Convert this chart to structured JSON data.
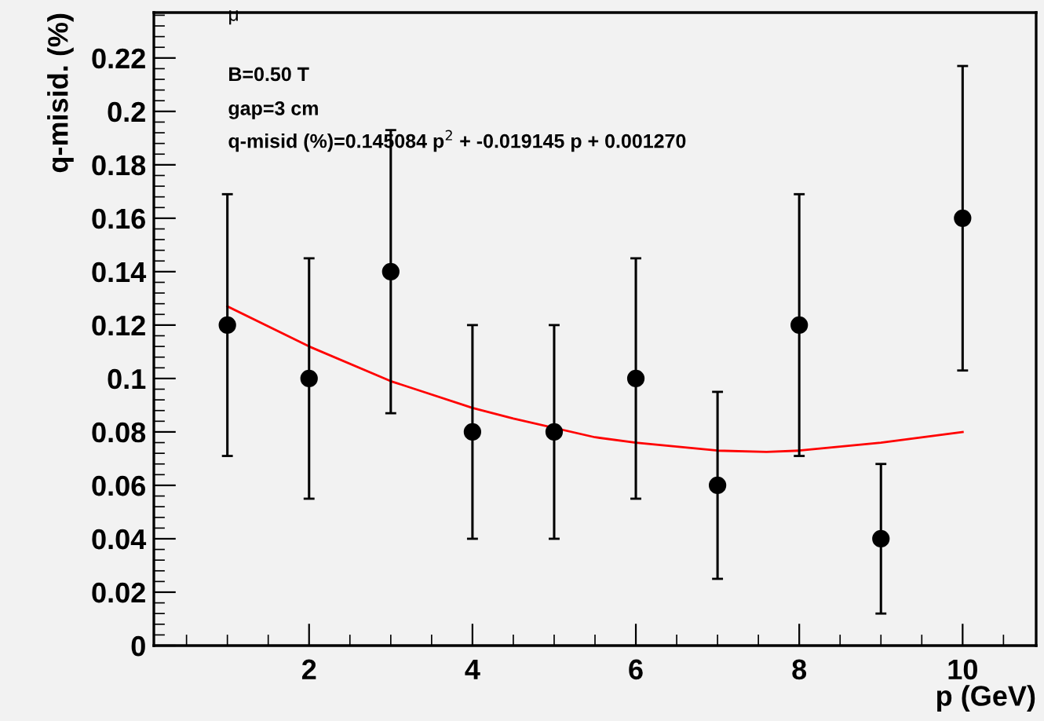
{
  "chart_data": {
    "type": "scatter",
    "xlabel": "p (GeV)",
    "ylabel": "q-misid. (%)",
    "x": [
      1,
      2,
      3,
      4,
      5,
      6,
      7,
      8,
      9,
      10
    ],
    "series": [
      {
        "color": "#000000",
        "marker": "circle",
        "values": [
          0.12,
          0.1,
          0.14,
          0.08,
          0.08,
          0.1,
          0.06,
          0.12,
          0.04,
          0.16
        ],
        "errors": [
          0.049,
          0.045,
          0.053,
          0.04,
          0.04,
          0.045,
          0.035,
          0.049,
          0.028,
          0.057
        ]
      },
      {
        "type": "line",
        "color": "#ff0000",
        "x": [
          1,
          2,
          3,
          4,
          4.5,
          5.5,
          6,
          7,
          7.6,
          8,
          9,
          10
        ],
        "values": [
          0.127,
          0.112,
          0.099,
          0.089,
          0.085,
          0.078,
          0.076,
          0.073,
          0.0725,
          0.073,
          0.076,
          0.08
        ]
      }
    ],
    "xlim": [
      0.1,
      10.9
    ],
    "ylim": [
      0,
      0.237
    ],
    "xticks": [
      2,
      4,
      6,
      8,
      10
    ],
    "yticks": [
      0,
      0.02,
      0.04,
      0.06,
      0.08,
      {
        "value": 0.1,
        "label": "0.1"
      },
      0.12,
      0.14,
      0.16,
      0.18,
      {
        "value": 0.2,
        "label": "0.2"
      },
      0.22
    ],
    "grid": false,
    "legend": false,
    "annotations": [
      "μ",
      "B=0.50 T",
      "gap=3 cm",
      "q-misid (%)=0.145084 p$^{2}$ + -0.019145 p + 0.001270"
    ]
  }
}
